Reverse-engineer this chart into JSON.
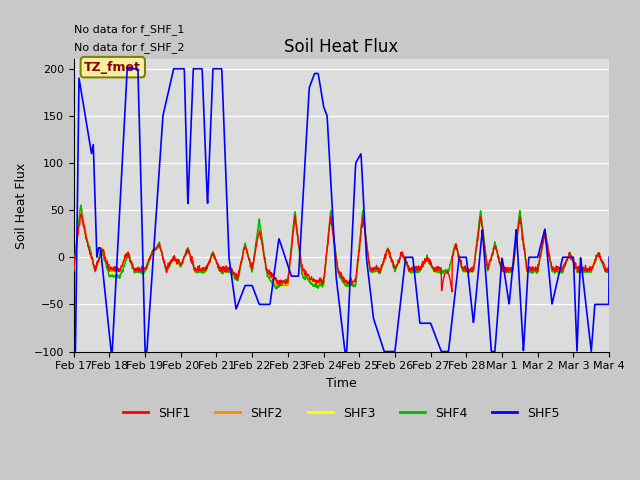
{
  "title": "Soil Heat Flux",
  "ylabel": "Soil Heat Flux",
  "xlabel": "Time",
  "annotations": [
    "No data for f_SHF_1",
    "No data for f_SHF_2"
  ],
  "tz_label": "TZ_fmet",
  "ylim": [
    -100,
    210
  ],
  "yticks": [
    -100,
    -50,
    0,
    50,
    100,
    150,
    200
  ],
  "background_color": "#dcdcdc",
  "fig_facecolor": "#c8c8c8",
  "legend_entries": [
    "SHF1",
    "SHF2",
    "SHF3",
    "SHF4",
    "SHF5"
  ],
  "legend_colors": [
    "#ff0000",
    "#ff8800",
    "#ffff00",
    "#00bb00",
    "#0000ff"
  ],
  "title_fontsize": 12,
  "axis_label_fontsize": 9,
  "tick_fontsize": 8,
  "x_start": 17.0,
  "x_end": 32.0,
  "x_tick_positions": [
    17,
    18,
    19,
    20,
    21,
    22,
    23,
    24,
    25,
    26,
    27,
    28,
    29,
    30,
    31,
    32
  ],
  "x_tick_labels": [
    "Feb 17",
    "Feb 18",
    "Feb 19",
    "Feb 20",
    "Feb 21",
    "Feb 22",
    "Feb 23",
    "Feb 24",
    "Feb 25",
    "Feb 26",
    "Feb 27",
    "Feb 28",
    "Mar 1",
    "Mar 2",
    "Mar 3",
    "Mar 4"
  ]
}
